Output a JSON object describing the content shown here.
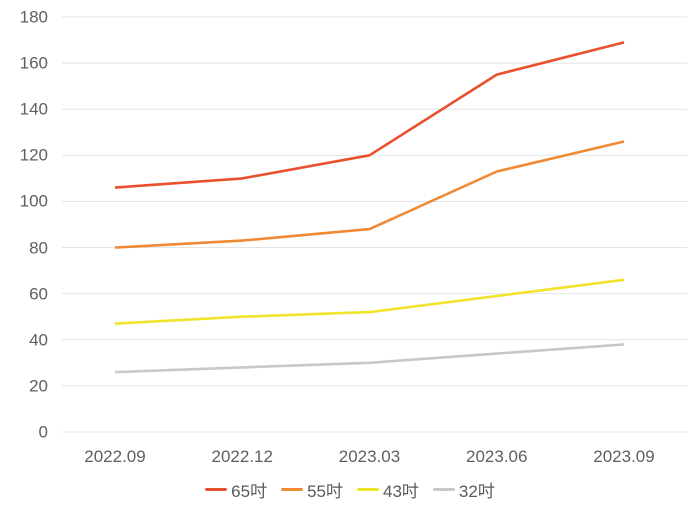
{
  "chart_data": {
    "type": "line",
    "title": "",
    "xlabel": "",
    "ylabel": "",
    "categories": [
      "2022.09",
      "2022.12",
      "2023.03",
      "2023.06",
      "2023.09"
    ],
    "series": [
      {
        "name": "65吋",
        "color": "#E8502E",
        "values": [
          106,
          110,
          120,
          155,
          169
        ]
      },
      {
        "name": "55吋",
        "color": "#F08A35",
        "values": [
          80,
          83,
          88,
          113,
          126
        ]
      },
      {
        "name": "43吋",
        "color": "#F2E32C",
        "values": [
          47,
          50,
          52,
          59,
          66
        ]
      },
      {
        "name": "32吋",
        "color": "#C8C8C8",
        "values": [
          26,
          28,
          30,
          34,
          38
        ]
      }
    ],
    "ylim": [
      0,
      180
    ],
    "ytick_step": 20,
    "yticks": [
      0,
      20,
      40,
      60,
      80,
      100,
      120,
      140,
      160,
      180
    ],
    "grid": "horizontal-only",
    "legend_position": "bottom-center",
    "colors": {
      "background": "#FFFFFF",
      "axis_text": "#5F5F5F",
      "gridline": "#E4E4E4"
    }
  }
}
